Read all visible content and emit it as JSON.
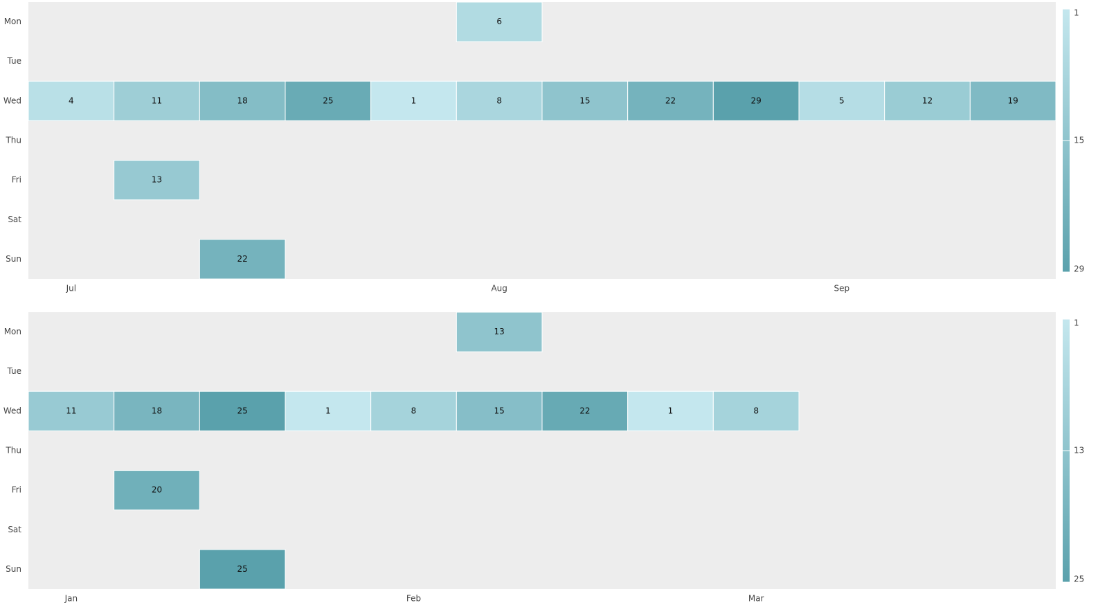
{
  "chart_data": [
    {
      "type": "heatmap",
      "categories": [
        "Jul",
        null,
        null,
        null,
        null,
        "Aug",
        null,
        null,
        null,
        "Sep",
        null,
        null
      ],
      "series": [
        {
          "name": "Mon",
          "values": [
            null,
            null,
            null,
            null,
            null,
            6,
            null,
            null,
            null,
            null,
            null,
            null
          ]
        },
        {
          "name": "Tue",
          "values": [
            null,
            null,
            null,
            null,
            null,
            null,
            null,
            null,
            null,
            null,
            null,
            null
          ]
        },
        {
          "name": "Wed",
          "values": [
            4,
            11,
            18,
            25,
            1,
            8,
            15,
            22,
            29,
            5,
            12,
            19
          ]
        },
        {
          "name": "Thu",
          "values": [
            null,
            null,
            null,
            null,
            null,
            null,
            null,
            null,
            null,
            null,
            null,
            null
          ]
        },
        {
          "name": "Fri",
          "values": [
            null,
            13,
            null,
            null,
            null,
            null,
            null,
            null,
            null,
            null,
            null,
            null
          ]
        },
        {
          "name": "Sat",
          "values": [
            null,
            null,
            null,
            null,
            null,
            null,
            null,
            null,
            null,
            null,
            null,
            null
          ]
        },
        {
          "name": "Sun",
          "values": [
            null,
            null,
            22,
            null,
            null,
            null,
            null,
            null,
            null,
            null,
            null,
            null
          ]
        }
      ],
      "colorscale": [
        "#c4e7ee",
        "#5aa1ac"
      ],
      "zlim": [
        1,
        29
      ],
      "zticks": [
        1,
        15,
        29
      ]
    },
    {
      "type": "heatmap",
      "categories": [
        "Jan",
        null,
        null,
        null,
        "Feb",
        null,
        null,
        null,
        "Mar",
        null,
        null,
        null
      ],
      "series": [
        {
          "name": "Mon",
          "values": [
            null,
            null,
            null,
            null,
            null,
            13,
            null,
            null,
            null,
            null,
            null,
            null
          ]
        },
        {
          "name": "Tue",
          "values": [
            null,
            null,
            null,
            null,
            null,
            null,
            null,
            null,
            null,
            null,
            null,
            null
          ]
        },
        {
          "name": "Wed",
          "values": [
            11,
            18,
            25,
            1,
            8,
            15,
            22,
            1,
            8,
            null,
            null,
            null
          ]
        },
        {
          "name": "Thu",
          "values": [
            null,
            null,
            null,
            null,
            null,
            null,
            null,
            null,
            null,
            null,
            null,
            null
          ]
        },
        {
          "name": "Fri",
          "values": [
            null,
            20,
            null,
            null,
            null,
            null,
            null,
            null,
            null,
            null,
            null,
            null
          ]
        },
        {
          "name": "Sat",
          "values": [
            null,
            null,
            null,
            null,
            null,
            null,
            null,
            null,
            null,
            null,
            null,
            null
          ]
        },
        {
          "name": "Sun",
          "values": [
            null,
            null,
            25,
            null,
            null,
            null,
            null,
            null,
            null,
            null,
            null,
            null
          ]
        }
      ],
      "colorscale": [
        "#c4e7ee",
        "#5aa1ac"
      ],
      "zlim": [
        1,
        25
      ],
      "zticks": [
        1,
        13,
        25
      ]
    }
  ]
}
